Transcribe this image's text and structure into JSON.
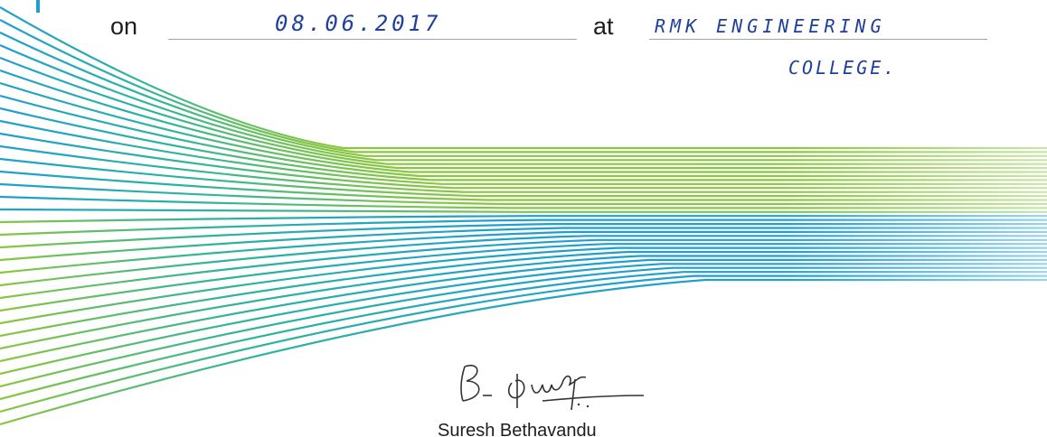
{
  "certificate": {
    "on_label": "on",
    "date_value": "08.06.2017",
    "at_label": "at",
    "place_line1": "RMK ENGINEERING",
    "place_line2": "COLLEGE.",
    "signature_text": "B. Suresh",
    "signatory_name": "Suresh Bethavandu"
  },
  "colors": {
    "line_blue": "#1e9fd0",
    "line_green": "#8cc63f",
    "handwriting": "#1f3f9e"
  }
}
